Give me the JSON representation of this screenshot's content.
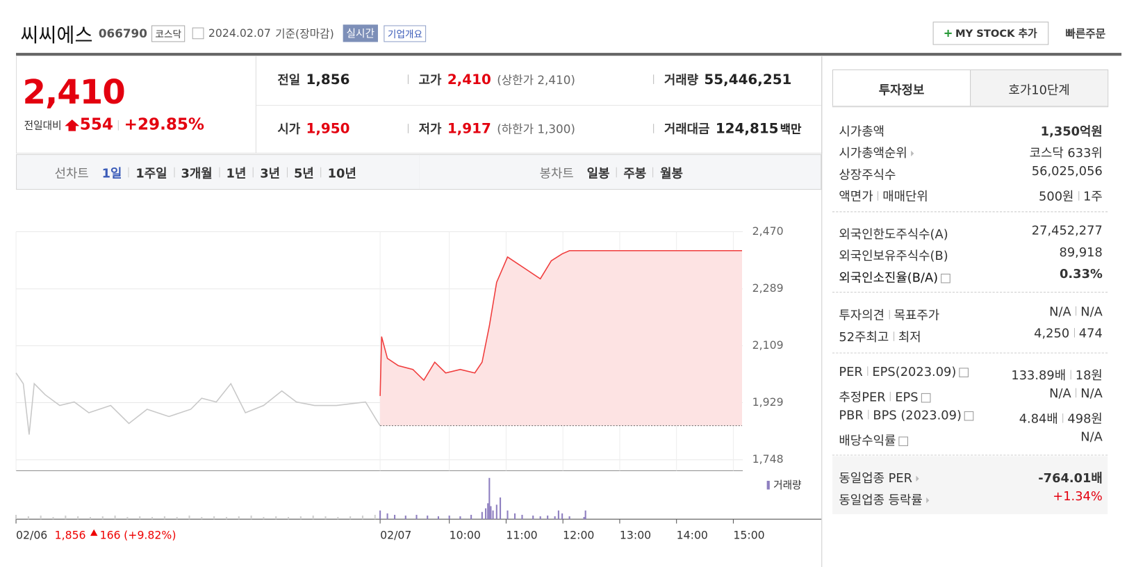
{
  "header": {
    "name": "씨씨에스",
    "code": "066790",
    "market": "코스닥",
    "date": "2024.02.07",
    "basis": "기준(장마감)",
    "realtime": "실시간",
    "overview": "기업개요",
    "mystock": "MY STOCK 추가",
    "quick_order": "빠른주문"
  },
  "summary": {
    "price": "2,410",
    "change_label": "전일대비",
    "change": "554",
    "change_rate": "+29.85%",
    "items": [
      {
        "label": "전일",
        "value": "1,856"
      },
      {
        "label": "고가",
        "value": "2,410",
        "sub": "(상한가 2,410)",
        "color": "#e3000f"
      },
      {
        "label": "거래량",
        "value": "55,446,251"
      },
      {
        "label": "시가",
        "value": "1,950",
        "color": "#e3000f"
      },
      {
        "label": "저가",
        "value": "1,917",
        "sub": "(하한가 1,300)",
        "color": "#e3000f"
      },
      {
        "label": "거래대금",
        "value": "124,815",
        "unit": "백만"
      }
    ]
  },
  "tabs": {
    "line_label": "선차트",
    "line": [
      "1일",
      "1주일",
      "3개월",
      "1년",
      "3년",
      "5년",
      "10년"
    ],
    "selected_index": 0,
    "candle_label": "봉차트",
    "candle": [
      "일봉",
      "주봉",
      "월봉"
    ]
  },
  "chart_data": {
    "type": "line",
    "ylim": [
      1748,
      2470
    ],
    "yticks": [
      {
        "value": 2470,
        "label": "2,470"
      },
      {
        "value": 2289,
        "label": "2,289"
      },
      {
        "value": 2109,
        "label": "2,109"
      },
      {
        "value": 1929,
        "label": "1,929"
      },
      {
        "value": 1748,
        "label": "1,748"
      }
    ],
    "xlim": [
      0,
      998
    ],
    "xticks": [
      {
        "value": 0,
        "label": "02/06"
      },
      {
        "value": 500,
        "label": "02/07"
      },
      {
        "value": 595,
        "label": "10:00"
      },
      {
        "value": 673,
        "label": "11:00"
      },
      {
        "value": 751,
        "label": "12:00"
      },
      {
        "value": 829,
        "label": "13:00"
      },
      {
        "value": 907,
        "label": "14:00"
      },
      {
        "value": 985,
        "label": "15:00"
      }
    ],
    "grid": true,
    "base": 1856,
    "series": [
      {
        "color": "#c8c8c8",
        "x": [
          0,
          10,
          18,
          25,
          40,
          60,
          80,
          100,
          130,
          155,
          180,
          210,
          240,
          255,
          275,
          295,
          315,
          340,
          365,
          385,
          410,
          440,
          480,
          495,
          500
        ],
        "values": [
          2023,
          1989,
          1828,
          1989,
          1954,
          1920,
          1931,
          1897,
          1920,
          1863,
          1908,
          1885,
          1908,
          1943,
          1931,
          1989,
          1897,
          1920,
          1966,
          1931,
          1920,
          1920,
          1931,
          1874,
          1856
        ]
      },
      {
        "color": "#f03c3c",
        "fill": "#fde3e3",
        "x": [
          500,
          502,
          510,
          525,
          545,
          560,
          575,
          590,
          610,
          630,
          640,
          650,
          660,
          675,
          690,
          705,
          720,
          735,
          750,
          760,
          997
        ],
        "values": [
          1950,
          2138,
          2069,
          2046,
          2034,
          2000,
          2057,
          2023,
          2034,
          2023,
          2057,
          2172,
          2310,
          2390,
          2367,
          2344,
          2321,
          2378,
          2400,
          2410,
          2410
        ]
      }
    ],
    "volume_ylim": [
      0,
      60
    ],
    "volume": [
      {
        "color": "#cfcfcf",
        "x": [
          0,
          17,
          34,
          51,
          68,
          85,
          102,
          119,
          136,
          153,
          170,
          187,
          204,
          221,
          238,
          255,
          272,
          289,
          306,
          323,
          340,
          357,
          374,
          391,
          408,
          425,
          442,
          459,
          476,
          493
        ],
        "values": [
          6,
          4,
          5,
          3,
          5,
          4,
          3,
          4,
          5,
          3,
          4,
          3,
          4,
          3,
          5,
          3,
          4,
          3,
          4,
          5,
          3,
          4,
          3,
          4,
          5,
          4,
          3,
          4,
          5,
          6
        ]
      },
      {
        "name": "거래량",
        "color": "#8e7fc0",
        "x": [
          500,
          510,
          520,
          535,
          550,
          565,
          580,
          595,
          610,
          625,
          640,
          645,
          648,
          650,
          652,
          655,
          660,
          665,
          675,
          685,
          695,
          710,
          720,
          730,
          740,
          745,
          750,
          760,
          780,
          782
        ],
        "values": [
          12,
          8,
          6,
          5,
          6,
          5,
          4,
          5,
          4,
          6,
          10,
          15,
          22,
          57,
          18,
          12,
          20,
          30,
          12,
          8,
          6,
          5,
          4,
          5,
          4,
          12,
          8,
          4,
          3,
          12
        ]
      }
    ],
    "prev_summary": {
      "price": "1,856",
      "change": "166",
      "rate": "(+9.82%)"
    }
  },
  "invest": {
    "tabs": [
      "투자정보",
      "호가10단계"
    ],
    "groups": [
      [
        {
          "label": [
            "시가총액"
          ],
          "value": [
            "1,350억원"
          ],
          "bold": true
        },
        {
          "label": [
            "시가총액순위"
          ],
          "arrow": true,
          "value": [
            "코스닥 633위"
          ]
        },
        {
          "label": [
            "상장주식수"
          ],
          "value": [
            "56,025,056"
          ]
        },
        {
          "label": [
            "액면가",
            "매매단위"
          ],
          "value": [
            "500원",
            "1주"
          ]
        }
      ],
      [
        {
          "label": [
            "외국인한도주식수(A)"
          ],
          "value": [
            "27,452,277"
          ]
        },
        {
          "label": [
            "외국인보유주식수(B)"
          ],
          "value": [
            "89,918"
          ]
        },
        {
          "label": [
            "외국인소진율(B/A)"
          ],
          "help": true,
          "value": [
            "0.33%"
          ],
          "bold": true
        }
      ],
      [
        {
          "label": [
            "투자의견",
            "목표주가"
          ],
          "value": [
            "N/A",
            "N/A"
          ]
        },
        {
          "label": [
            "52주최고",
            "최저"
          ],
          "value": [
            "4,250",
            "474"
          ]
        }
      ],
      [
        {
          "label": [
            "PER",
            "EPS(2023.09)"
          ],
          "help": true,
          "value": [
            "133.89배",
            "18원"
          ]
        },
        {
          "label": [
            "추정PER",
            "EPS"
          ],
          "help": true,
          "value": [
            "N/A",
            "N/A"
          ]
        },
        {
          "label": [
            "PBR",
            "BPS (2023.09)"
          ],
          "help": true,
          "value": [
            "4.84배",
            "498원"
          ]
        },
        {
          "label": [
            "배당수익률"
          ],
          "help": true,
          "value": [
            "N/A"
          ]
        }
      ],
      [
        {
          "label": [
            "동일업종 PER"
          ],
          "arrow": true,
          "value": [
            "-764.01배"
          ],
          "bold": true
        },
        {
          "label": [
            "동일업종 등락률"
          ],
          "arrow": true,
          "value": [
            "+1.34%"
          ],
          "color": "#e3000f"
        }
      ]
    ]
  }
}
